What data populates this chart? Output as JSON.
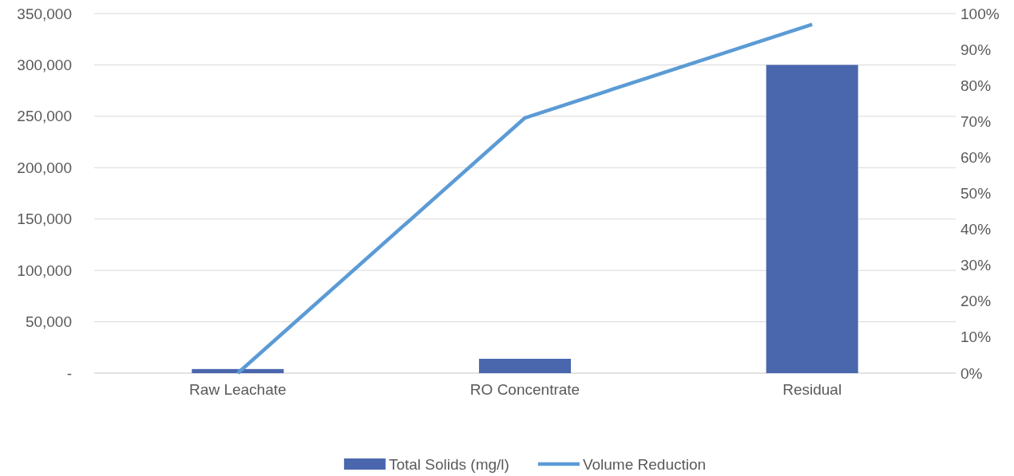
{
  "chart_data": {
    "type": "bar",
    "categories": [
      "Raw Leachate",
      "RO Concentrate",
      "Residual"
    ],
    "series": [
      {
        "name": "Total Solids (mg/l)",
        "color": "#4a67ae",
        "values": [
          4000,
          14000,
          300000
        ]
      },
      {
        "name": "Volume Reduction",
        "type": "line",
        "axis": "y2",
        "color": "#5b9bd5",
        "values": [
          0,
          71,
          97
        ]
      }
    ],
    "ylim": [
      0,
      350000
    ],
    "yticks": [
      {
        "value": 0,
        "label": "-"
      },
      {
        "value": 50000,
        "label": "50,000"
      },
      {
        "value": 100000,
        "label": "100,000"
      },
      {
        "value": 150000,
        "label": "150,000"
      },
      {
        "value": 200000,
        "label": "200,000"
      },
      {
        "value": 250000,
        "label": "250,000"
      },
      {
        "value": 300000,
        "label": "300,000"
      },
      {
        "value": 350000,
        "label": "350,000"
      }
    ],
    "y2lim": [
      0,
      100
    ],
    "y2ticks": [
      {
        "value": 0,
        "label": "0%"
      },
      {
        "value": 10,
        "label": "10%"
      },
      {
        "value": 20,
        "label": "20%"
      },
      {
        "value": 30,
        "label": "30%"
      },
      {
        "value": 40,
        "label": "40%"
      },
      {
        "value": 50,
        "label": "50%"
      },
      {
        "value": 60,
        "label": "60%"
      },
      {
        "value": 70,
        "label": "70%"
      },
      {
        "value": 80,
        "label": "80%"
      },
      {
        "value": 90,
        "label": "90%"
      },
      {
        "value": 100,
        "label": "100%"
      }
    ],
    "grid": "y",
    "legend": "bottom",
    "marker": "none",
    "line_style": "solid"
  }
}
